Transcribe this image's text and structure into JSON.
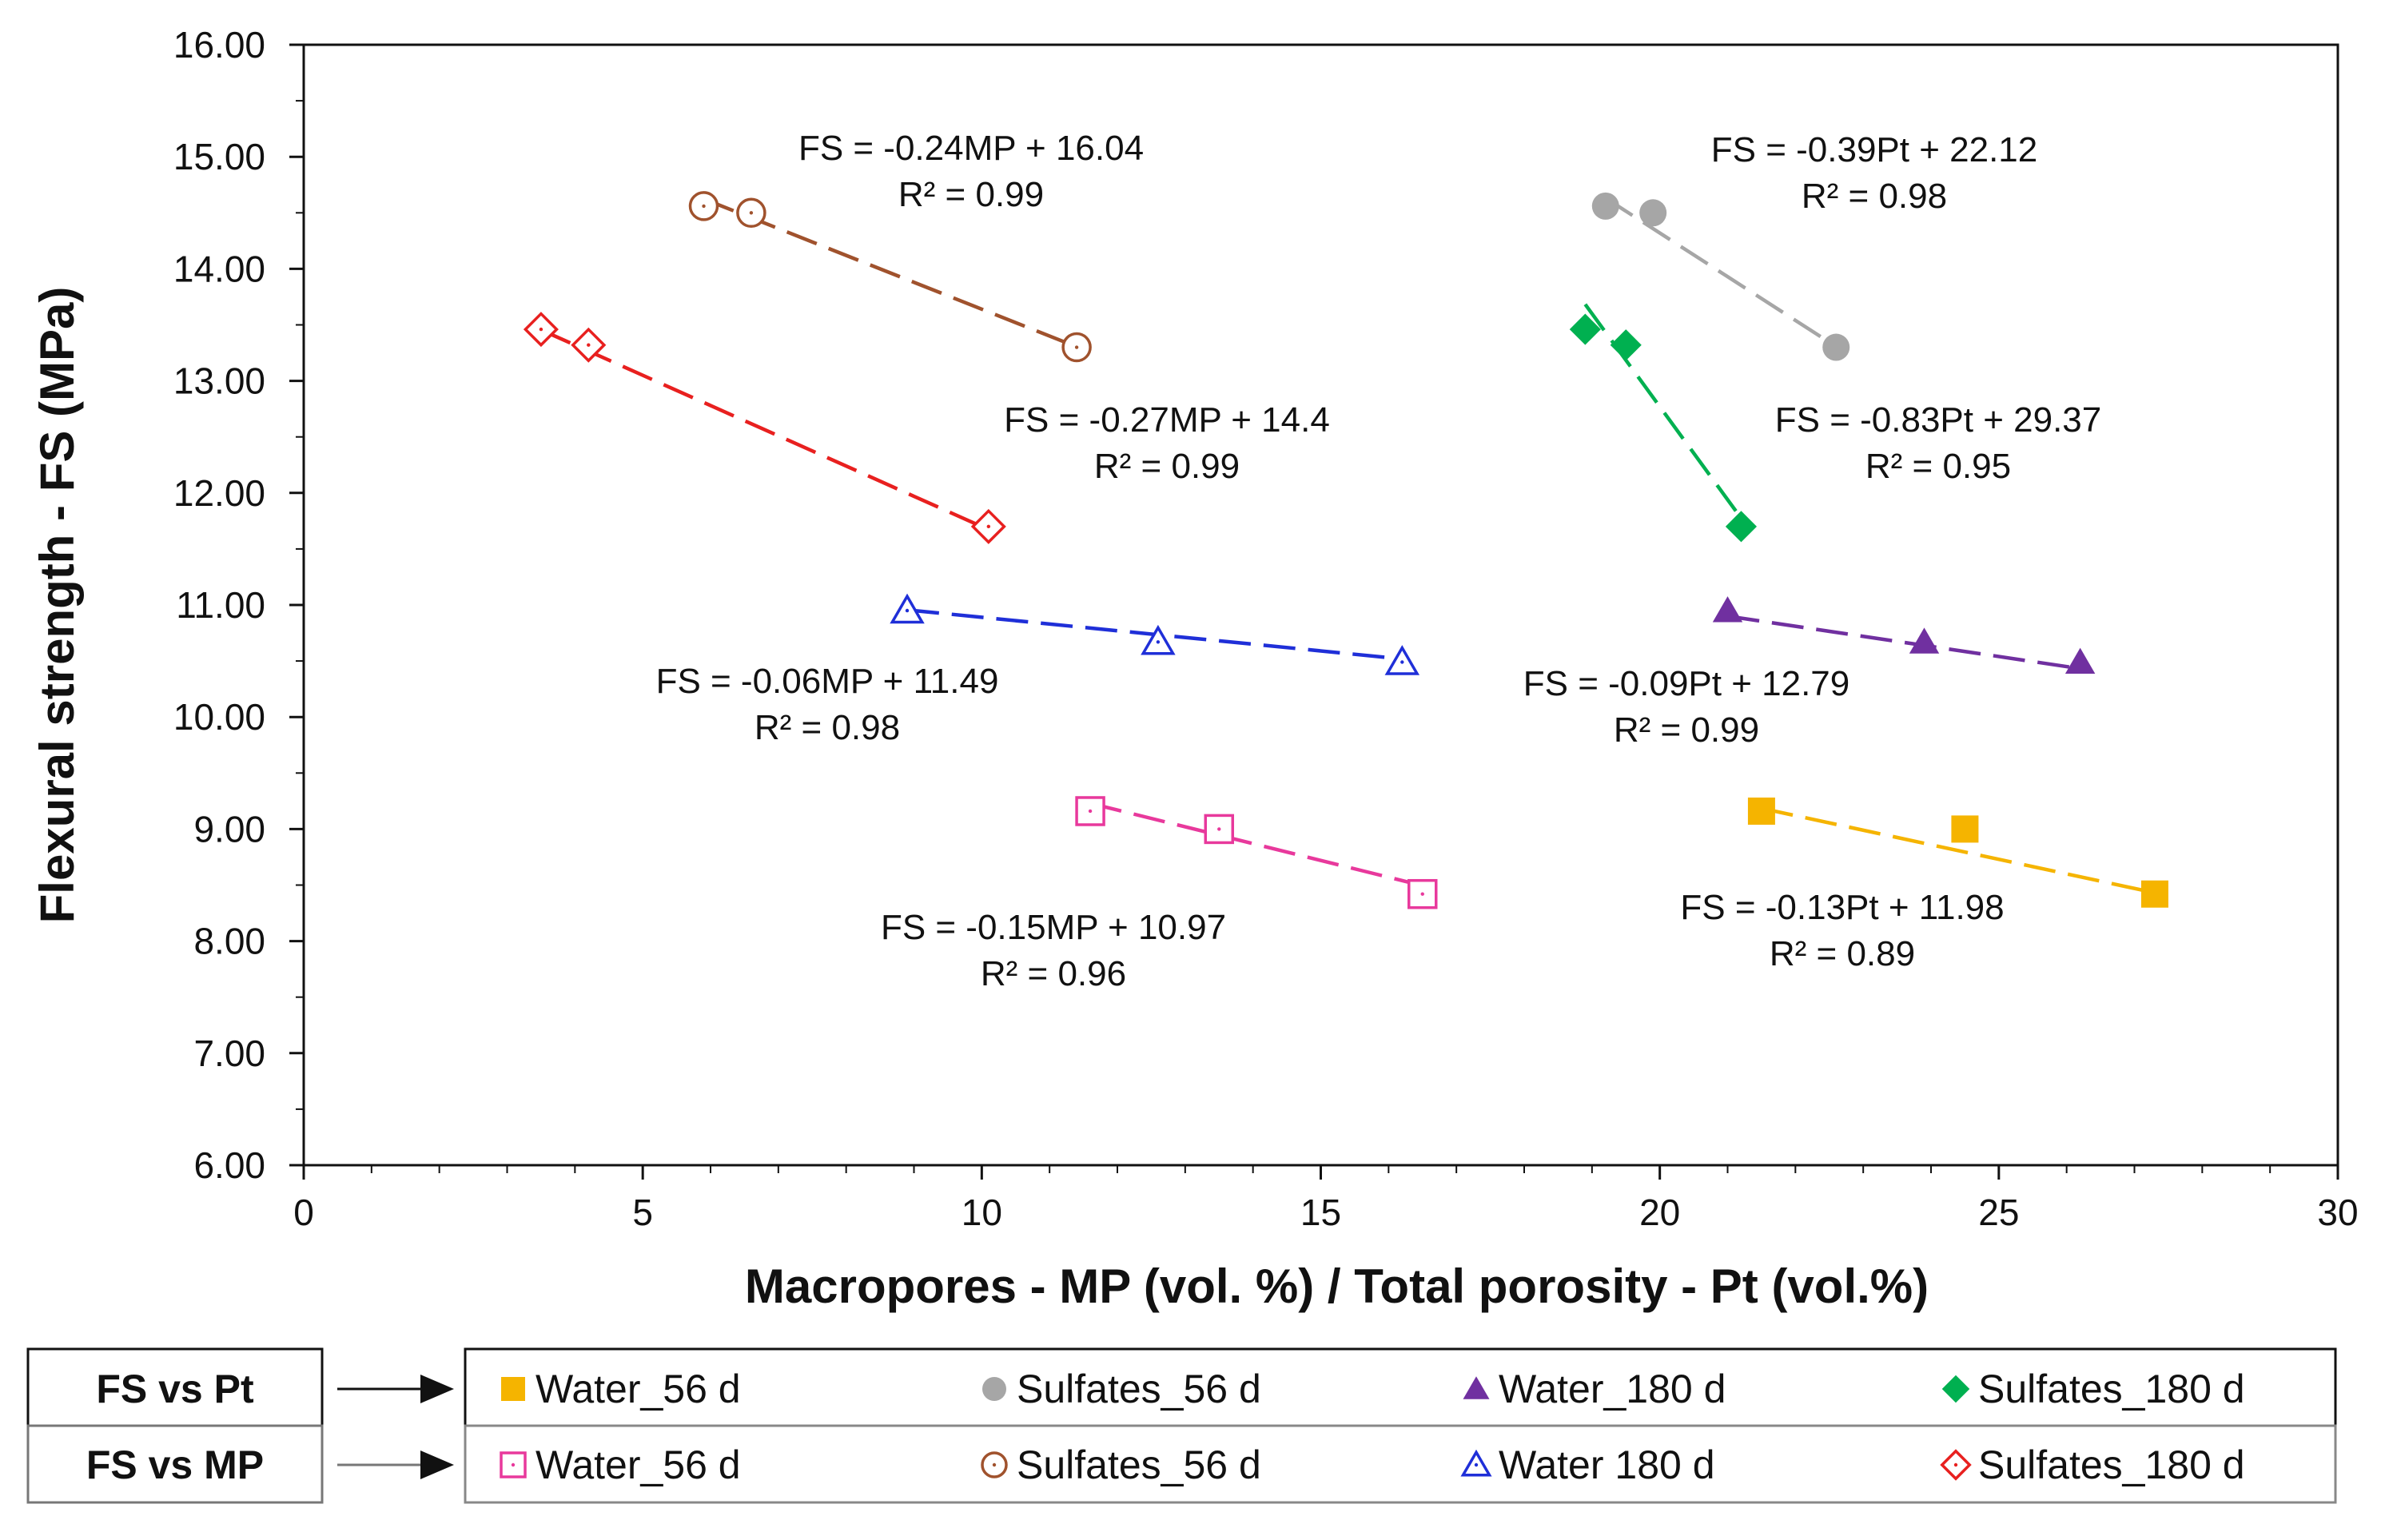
{
  "chart_data": {
    "type": "scatter",
    "xlabel": "Macropores - MP (vol. %) / Total porosity - Pt (vol.%)",
    "ylabel": "Flexural strength - FS (MPa)",
    "xlim": [
      0,
      30
    ],
    "ylim": [
      6,
      16
    ],
    "xticks": [
      "0",
      "5",
      "10",
      "15",
      "20",
      "25",
      "30"
    ],
    "yticks": [
      "6.00",
      "7.00",
      "8.00",
      "9.00",
      "10.00",
      "11.00",
      "12.00",
      "13.00",
      "14.00",
      "15.00",
      "16.00"
    ],
    "grid": false,
    "series": [
      {
        "key": "pt_water56",
        "name": "Water_56 d",
        "group": "FS vs Pt",
        "marker": "square",
        "filled": true,
        "color": "#f5b400",
        "x": [
          21.5,
          24.5,
          27.3
        ],
        "y": [
          9.16,
          9.0,
          8.42
        ],
        "fit": {
          "slope": -0.13,
          "intercept": 11.98
        },
        "equation": "FS = -0.13Pt + 11.98",
        "r2": "R² = 0.89"
      },
      {
        "key": "pt_sulf56",
        "name": "Sulfates_56 d",
        "group": "FS vs Pt",
        "marker": "circle",
        "filled": true,
        "color": "#a6a6a6",
        "x": [
          19.2,
          19.9,
          22.6
        ],
        "y": [
          14.56,
          14.5,
          13.3
        ],
        "fit": {
          "slope": -0.39,
          "intercept": 22.12
        },
        "equation": "FS = -0.39Pt + 22.12",
        "r2": "R² = 0.98"
      },
      {
        "key": "pt_water180",
        "name": "Water_180 d",
        "group": "FS vs Pt",
        "marker": "triangle",
        "filled": true,
        "color": "#7030a0",
        "x": [
          21.0,
          23.9,
          26.2
        ],
        "y": [
          10.95,
          10.67,
          10.49
        ],
        "fit": {
          "slope": -0.09,
          "intercept": 12.79
        },
        "equation": "FS = -0.09Pt + 12.79",
        "r2": "R² = 0.99"
      },
      {
        "key": "pt_sulf180",
        "name": "Sulfates_180 d",
        "group": "FS vs Pt",
        "marker": "diamond",
        "filled": true,
        "color": "#00b050",
        "x": [
          18.9,
          19.5,
          21.2
        ],
        "y": [
          13.46,
          13.32,
          11.7
        ],
        "fit": {
          "slope": -0.83,
          "intercept": 29.37
        },
        "equation": "FS = -0.83Pt + 29.37",
        "r2": "R² = 0.95"
      },
      {
        "key": "mp_water56",
        "name": "Water_56 d",
        "group": "FS vs MP",
        "marker": "square",
        "filled": false,
        "color": "#e8399c",
        "x": [
          11.6,
          13.5,
          16.5
        ],
        "y": [
          9.16,
          9.0,
          8.42
        ],
        "fit": {
          "slope": -0.15,
          "intercept": 10.97
        },
        "equation": "FS = -0.15MP + 10.97",
        "r2": "R² = 0.96"
      },
      {
        "key": "mp_sulf56",
        "name": "Sulfates_56 d",
        "group": "FS vs MP",
        "marker": "circle",
        "filled": false,
        "color": "#a0522d",
        "x": [
          5.9,
          6.6,
          11.4
        ],
        "y": [
          14.56,
          14.5,
          13.3
        ],
        "fit": {
          "slope": -0.24,
          "intercept": 16.04
        },
        "equation": "FS = -0.24MP + 16.04",
        "r2": "R² = 0.99"
      },
      {
        "key": "mp_water180",
        "name": "Water 180 d",
        "group": "FS vs MP",
        "marker": "triangle",
        "filled": false,
        "color": "#1f2fd8",
        "x": [
          8.9,
          12.6,
          16.2
        ],
        "y": [
          10.95,
          10.67,
          10.49
        ],
        "fit": {
          "slope": -0.06,
          "intercept": 11.49
        },
        "equation": "FS = -0.06MP + 11.49",
        "r2": "R² = 0.98"
      },
      {
        "key": "mp_sulf180",
        "name": "Sulfates_180 d",
        "group": "FS vs MP",
        "marker": "diamond",
        "filled": false,
        "color": "#e8201f",
        "x": [
          3.5,
          4.2,
          10.1
        ],
        "y": [
          13.46,
          13.32,
          11.7
        ],
        "fit": {
          "slope": -0.27,
          "intercept": 14.4
        },
        "equation": "FS = -0.27MP + 14.4",
        "r2": "R² = 0.99"
      }
    ]
  },
  "legend": {
    "placement": "bottom",
    "rows": [
      {
        "label": "FS vs Pt",
        "series": [
          "pt_water56",
          "pt_sulf56",
          "pt_water180",
          "pt_sulf180"
        ]
      },
      {
        "label": "FS vs MP",
        "series": [
          "mp_water56",
          "mp_sulf56",
          "mp_water180",
          "mp_sulf180"
        ]
      }
    ]
  }
}
